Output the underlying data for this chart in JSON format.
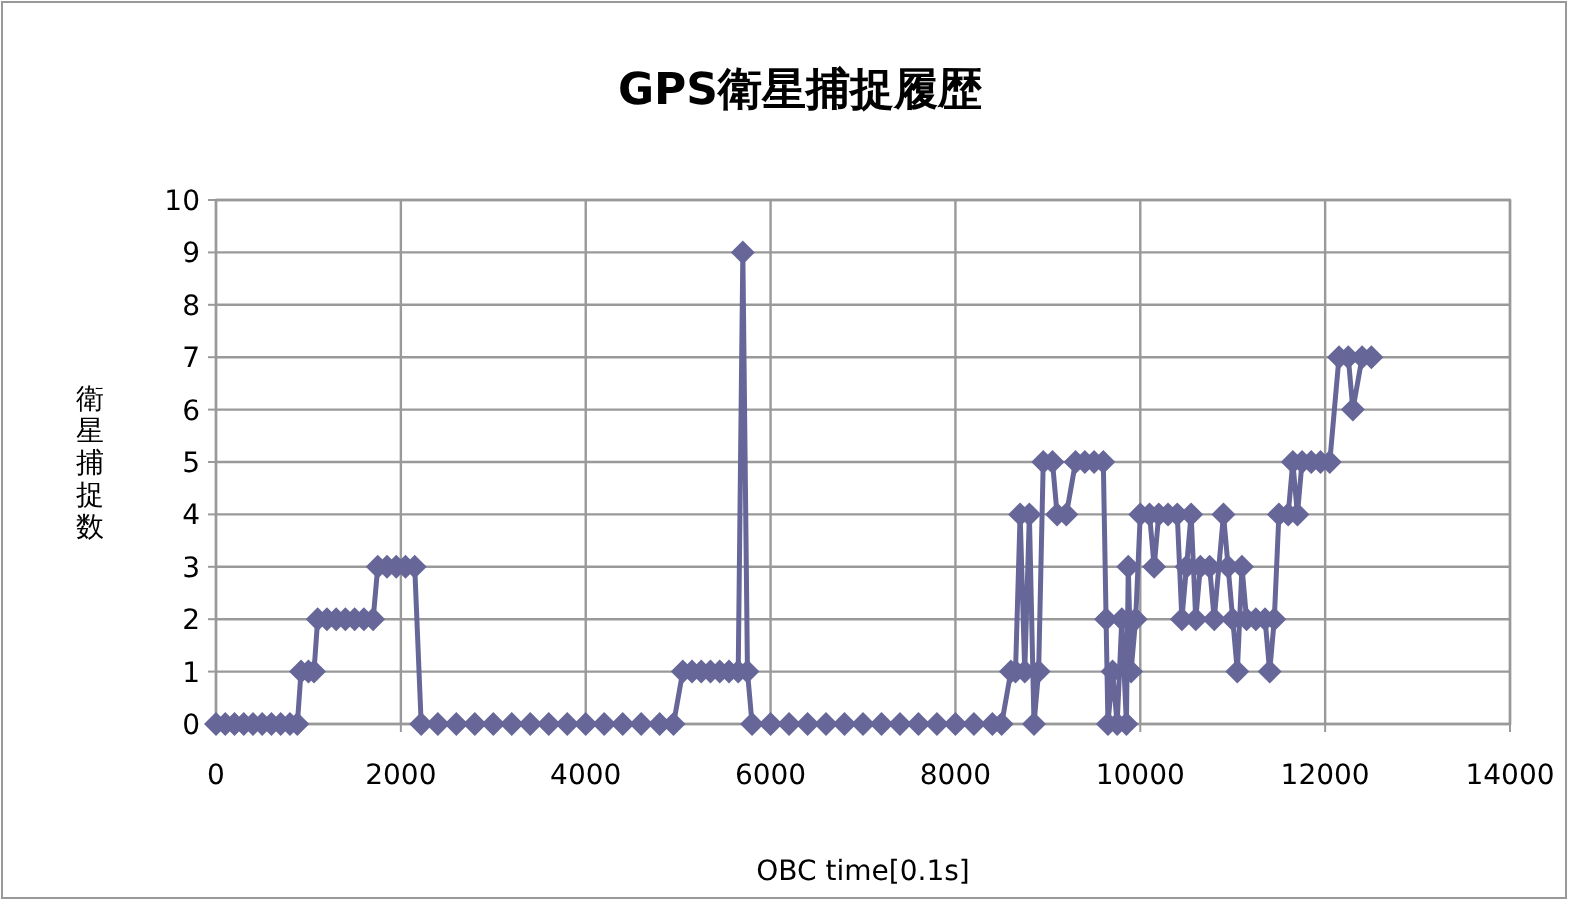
{
  "chart_data": {
    "type": "line",
    "title": "GPS衛星捕捉履歴",
    "xlabel": "OBC time[0.1s]",
    "ylabel": "衛星捕捉数",
    "series": [
      {
        "color": "#666699",
        "x": [
          0,
          100,
          200,
          300,
          400,
          500,
          600,
          700,
          800,
          880,
          920,
          1000,
          1060,
          1100,
          1200,
          1300,
          1400,
          1500,
          1600,
          1700,
          1750,
          1850,
          1950,
          2050,
          2150,
          2220,
          2400,
          2600,
          2800,
          3000,
          3200,
          3400,
          3600,
          3800,
          4000,
          4200,
          4400,
          4600,
          4800,
          4950,
          5050,
          5150,
          5250,
          5350,
          5450,
          5550,
          5650,
          5700,
          5750,
          5800,
          6000,
          6200,
          6400,
          6600,
          6800,
          7000,
          7200,
          7400,
          7600,
          7800,
          8000,
          8200,
          8400,
          8500,
          8600,
          8650,
          8700,
          8750,
          8800,
          8850,
          8900,
          8950,
          9050,
          9100,
          9200,
          9300,
          9400,
          9500,
          9600,
          9630,
          9650,
          9700,
          9750,
          9800,
          9850,
          9870,
          9900,
          9950,
          10000,
          10100,
          10150,
          10200,
          10300,
          10400,
          10450,
          10500,
          10550,
          10600,
          10650,
          10750,
          10800,
          10900,
          10950,
          11000,
          11050,
          11100,
          11150,
          11250,
          11350,
          11400,
          11450,
          11500,
          11600,
          11650,
          11700,
          11750,
          11850,
          11950,
          12050,
          12150,
          12250,
          12300,
          12400,
          12500
        ],
        "values": [
          0,
          0,
          0,
          0,
          0,
          0,
          0,
          0,
          0,
          0,
          1,
          1,
          1,
          2,
          2,
          2,
          2,
          2,
          2,
          2,
          3,
          3,
          3,
          3,
          3,
          0,
          0,
          0,
          0,
          0,
          0,
          0,
          0,
          0,
          0,
          0,
          0,
          0,
          0,
          0,
          1,
          1,
          1,
          1,
          1,
          1,
          1,
          9,
          1,
          0,
          0,
          0,
          0,
          0,
          0,
          0,
          0,
          0,
          0,
          0,
          0,
          0,
          0,
          0,
          1,
          1,
          4,
          1,
          4,
          0,
          1,
          5,
          5,
          4,
          4,
          5,
          5,
          5,
          5,
          2,
          0,
          1,
          0,
          2,
          0,
          3,
          1,
          2,
          4,
          4,
          3,
          4,
          4,
          4,
          2,
          3,
          4,
          2,
          3,
          3,
          2,
          4,
          3,
          2,
          1,
          3,
          2,
          2,
          2,
          1,
          2,
          4,
          4,
          5,
          4,
          5,
          5,
          5,
          5,
          7,
          7,
          6,
          7,
          7
        ]
      }
    ],
    "xlim": [
      0,
      14000
    ],
    "xticks": [
      0,
      2000,
      4000,
      6000,
      8000,
      10000,
      12000,
      14000
    ],
    "ylim": [
      0,
      10
    ],
    "yticks": [
      0,
      1,
      2,
      3,
      4,
      5,
      6,
      7,
      8,
      9,
      10
    ],
    "grid": true,
    "marker": "diamond",
    "line_style": "solid"
  }
}
